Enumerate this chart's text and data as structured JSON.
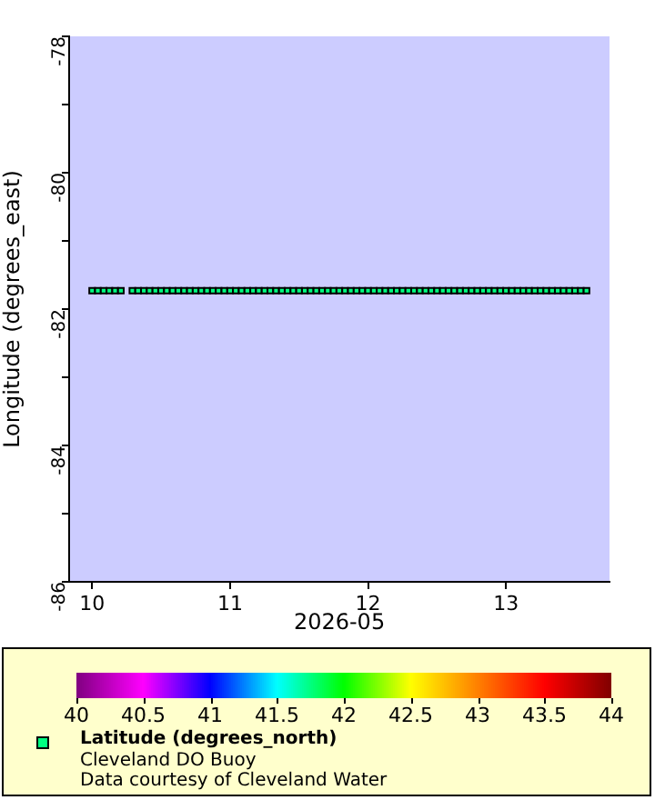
{
  "chart_data": {
    "type": "scatter",
    "xlabel": "2026-05",
    "ylabel": "Longitude (degrees_east)",
    "clabel": "Latitude (degrees_north)",
    "annotations": [
      "Cleveland DO Buoy",
      "Data courtesy of Cleveland Water"
    ],
    "x": [
      "2026-05-10T00:00",
      "2026-05-10T01:00",
      "2026-05-10T02:00",
      "2026-05-10T03:00",
      "2026-05-10T04:00",
      "2026-05-10T05:00",
      "2026-05-10T07:00",
      "2026-05-10T08:00",
      "2026-05-10T09:00",
      "2026-05-10T10:00",
      "2026-05-10T11:00",
      "2026-05-10T12:00",
      "2026-05-10T13:00",
      "2026-05-10T14:00",
      "2026-05-10T15:00",
      "2026-05-10T16:00",
      "2026-05-10T17:00",
      "2026-05-10T18:00",
      "2026-05-10T19:00",
      "2026-05-10T20:00",
      "2026-05-10T21:00",
      "2026-05-10T22:00",
      "2026-05-10T23:00",
      "2026-05-11T00:00",
      "2026-05-11T01:00",
      "2026-05-11T02:00",
      "2026-05-11T03:00",
      "2026-05-11T04:00",
      "2026-05-11T05:00",
      "2026-05-11T06:00",
      "2026-05-11T07:00",
      "2026-05-11T08:00",
      "2026-05-11T09:00",
      "2026-05-11T10:00",
      "2026-05-11T11:00",
      "2026-05-11T12:00",
      "2026-05-11T13:00",
      "2026-05-11T14:00",
      "2026-05-11T15:00",
      "2026-05-11T16:00",
      "2026-05-11T17:00",
      "2026-05-11T18:00",
      "2026-05-11T19:00",
      "2026-05-11T20:00",
      "2026-05-11T21:00",
      "2026-05-11T22:00",
      "2026-05-11T23:00",
      "2026-05-12T00:00",
      "2026-05-12T01:00",
      "2026-05-12T02:00",
      "2026-05-12T03:00",
      "2026-05-12T04:00",
      "2026-05-12T05:00",
      "2026-05-12T06:00",
      "2026-05-12T07:00",
      "2026-05-12T08:00",
      "2026-05-12T09:00",
      "2026-05-12T10:00",
      "2026-05-12T11:00",
      "2026-05-12T12:00",
      "2026-05-12T13:00",
      "2026-05-12T14:00",
      "2026-05-12T15:00",
      "2026-05-12T16:00",
      "2026-05-12T17:00",
      "2026-05-12T18:00",
      "2026-05-12T19:00",
      "2026-05-12T20:00",
      "2026-05-12T21:00",
      "2026-05-12T22:00",
      "2026-05-12T23:00",
      "2026-05-13T00:00",
      "2026-05-13T01:00",
      "2026-05-13T02:00",
      "2026-05-13T03:00",
      "2026-05-13T04:00",
      "2026-05-13T05:00",
      "2026-05-13T06:00",
      "2026-05-13T07:00",
      "2026-05-13T08:00",
      "2026-05-13T09:00",
      "2026-05-13T10:00",
      "2026-05-13T11:00",
      "2026-05-13T12:00",
      "2026-05-13T13:00",
      "2026-05-13T14:00"
    ],
    "series": [
      {
        "color": "#00ff80",
        "values": [
          -81.73,
          -81.73,
          -81.73,
          -81.73,
          -81.73,
          -81.73,
          -81.73,
          -81.73,
          -81.73,
          -81.73,
          -81.73,
          -81.73,
          -81.73,
          -81.73,
          -81.73,
          -81.73,
          -81.73,
          -81.73,
          -81.73,
          -81.73,
          -81.73,
          -81.73,
          -81.73,
          -81.73,
          -81.73,
          -81.73,
          -81.73,
          -81.73,
          -81.73,
          -81.73,
          -81.73,
          -81.73,
          -81.73,
          -81.73,
          -81.73,
          -81.73,
          -81.73,
          -81.73,
          -81.73,
          -81.73,
          -81.73,
          -81.73,
          -81.73,
          -81.73,
          -81.73,
          -81.73,
          -81.73,
          -81.73,
          -81.73,
          -81.73,
          -81.73,
          -81.73,
          -81.73,
          -81.73,
          -81.73,
          -81.73,
          -81.73,
          -81.73,
          -81.73,
          -81.73,
          -81.73,
          -81.73,
          -81.73,
          -81.73,
          -81.73,
          -81.73,
          -81.73,
          -81.73,
          -81.73,
          -81.73,
          -81.73,
          -81.73,
          -81.73,
          -81.73,
          -81.73,
          -81.73,
          -81.73,
          -81.73,
          -81.73,
          -81.73,
          -81.73,
          -81.73,
          -81.73,
          -81.73,
          -81.73,
          -81.73
        ],
        "cvalues": [
          41.75,
          41.75,
          41.75,
          41.75,
          41.75,
          41.75,
          41.75,
          41.75,
          41.75,
          41.75,
          41.75,
          41.75,
          41.75,
          41.75,
          41.75,
          41.75,
          41.75,
          41.75,
          41.75,
          41.75,
          41.75,
          41.75,
          41.75,
          41.75,
          41.75,
          41.75,
          41.75,
          41.75,
          41.75,
          41.75,
          41.75,
          41.75,
          41.75,
          41.75,
          41.75,
          41.75,
          41.75,
          41.75,
          41.75,
          41.75,
          41.75,
          41.75,
          41.75,
          41.75,
          41.75,
          41.75,
          41.75,
          41.75,
          41.75,
          41.75,
          41.75,
          41.75,
          41.75,
          41.75,
          41.75,
          41.75,
          41.75,
          41.75,
          41.75,
          41.75,
          41.75,
          41.75,
          41.75,
          41.75,
          41.75,
          41.75,
          41.75,
          41.75,
          41.75,
          41.75,
          41.75,
          41.75,
          41.75,
          41.75,
          41.75,
          41.75,
          41.75,
          41.75,
          41.75,
          41.75,
          41.75,
          41.75,
          41.75,
          41.75,
          41.75,
          41.75
        ]
      }
    ],
    "marker": "square",
    "grid": false,
    "xlim": [
      "2026-05-09T20:00",
      "2026-05-13T18:00"
    ],
    "xticks": [
      {
        "value": "2026-05-10",
        "label": "10"
      },
      {
        "value": "2026-05-11",
        "label": "11"
      },
      {
        "value": "2026-05-12",
        "label": "12"
      },
      {
        "value": "2026-05-13",
        "label": "13"
      }
    ],
    "ylim": [
      -86,
      -78
    ],
    "yticks": [
      -86,
      {
        "value": -85,
        "label": null
      },
      -84,
      {
        "value": -83,
        "label": null
      },
      -82,
      {
        "value": -81,
        "label": null
      },
      -80,
      {
        "value": -79,
        "label": null
      },
      -78
    ],
    "clim": [
      40,
      44
    ],
    "cticks": [
      40,
      40.5,
      41,
      41.5,
      42,
      42.5,
      43,
      43.5,
      44
    ]
  }
}
